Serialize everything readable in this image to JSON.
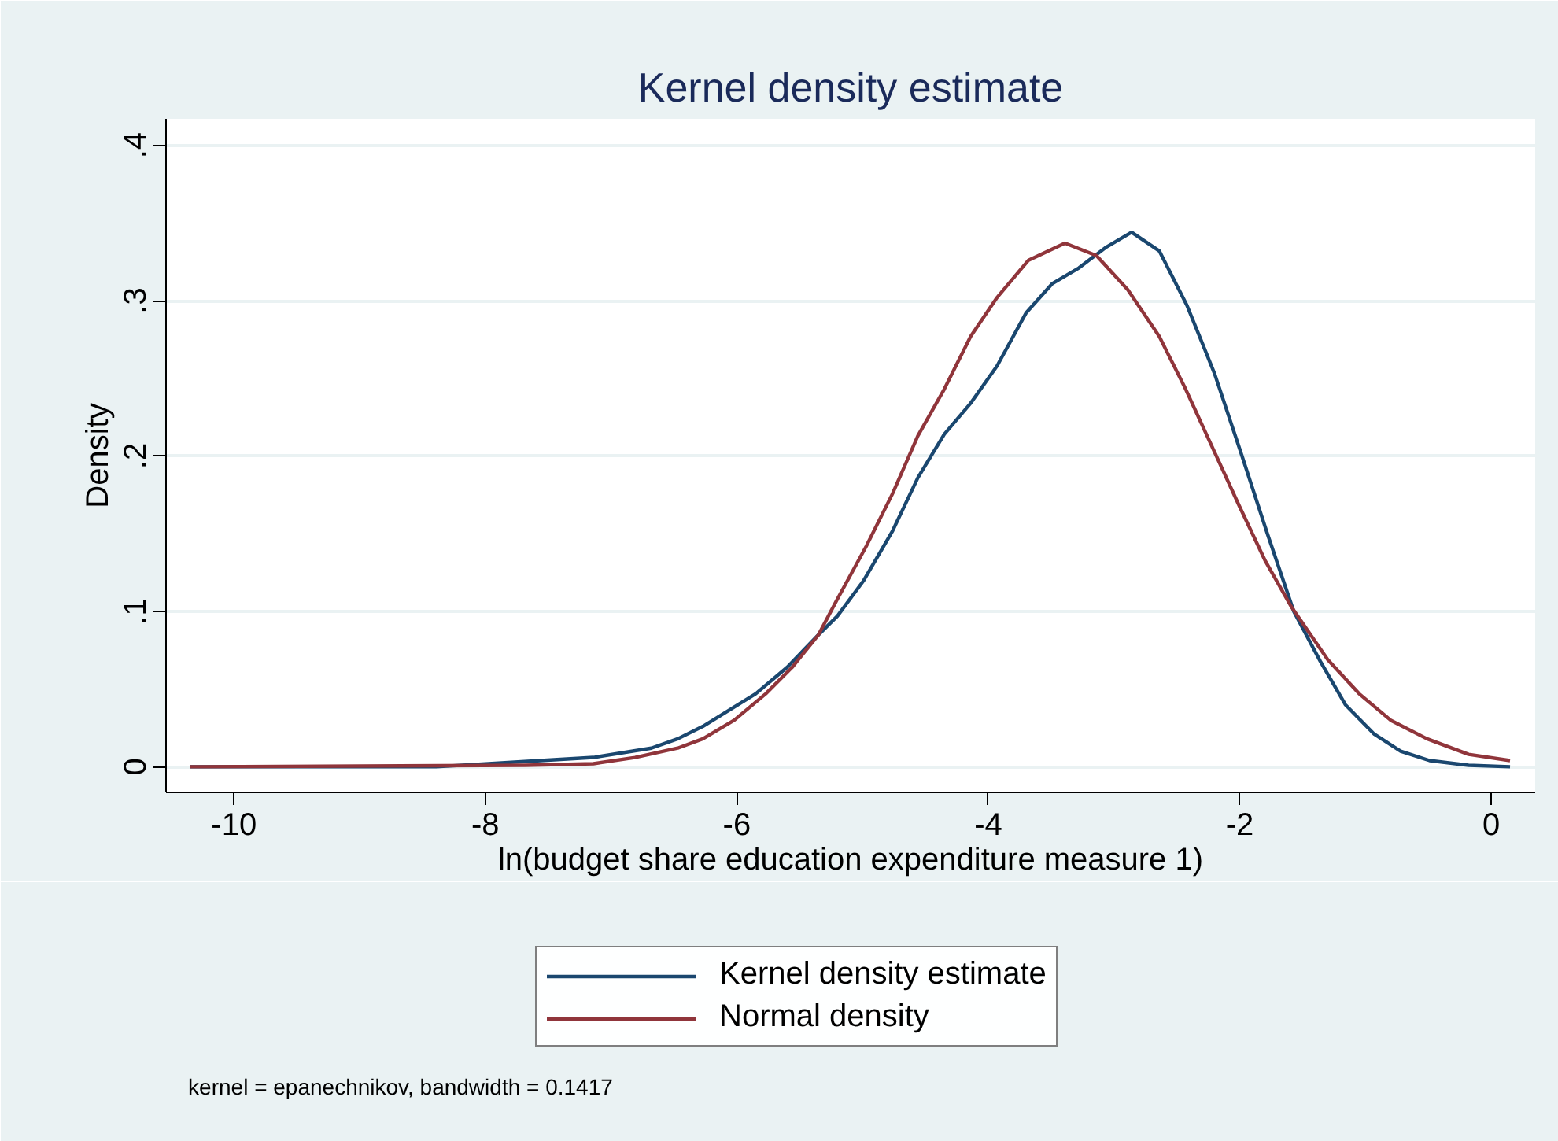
{
  "chart_data": {
    "type": "line",
    "title": "Kernel density estimate",
    "xlabel": "ln(budget share education expenditure measure 1)",
    "ylabel": "Density",
    "xlim": [
      -10.54,
      0.35
    ],
    "ylim": [
      -0.0165,
      0.417
    ],
    "xticks": [
      -10,
      -8,
      -6,
      -4,
      -2,
      0
    ],
    "yticks": [
      0,
      {
        "value": 0.1,
        "label": ".1"
      },
      {
        "value": 0.2,
        "label": ".2"
      },
      {
        "value": 0.3,
        "label": ".3"
      },
      {
        "value": 0.4,
        "label": ".4"
      }
    ],
    "grid": "y",
    "legend": "bottom",
    "annotations": [
      "kernel = epanechnikov, bandwidth = 0.1417"
    ],
    "series": [
      {
        "name": "Kernel density estimate",
        "color": "#1a476f",
        "x": [
          -10.35,
          -8.39,
          -7.56,
          -7.14,
          -6.68,
          -6.47,
          -6.27,
          -5.85,
          -5.6,
          -5.35,
          -5.2,
          -4.99,
          -4.76,
          -4.56,
          -4.35,
          -4.14,
          -3.93,
          -3.7,
          -3.49,
          -3.28,
          -3.07,
          -2.86,
          -2.64,
          -2.42,
          -2.2,
          -1.99,
          -1.78,
          -1.57,
          -1.36,
          -1.16,
          -0.93,
          -0.72,
          -0.49,
          -0.18,
          0.15
        ],
        "values": [
          0.0,
          0.0,
          0.004,
          0.006,
          0.012,
          0.018,
          0.026,
          0.047,
          0.064,
          0.085,
          0.097,
          0.12,
          0.152,
          0.186,
          0.214,
          0.234,
          0.258,
          0.292,
          0.311,
          0.321,
          0.334,
          0.344,
          0.332,
          0.297,
          0.253,
          0.202,
          0.15,
          0.1,
          0.068,
          0.04,
          0.021,
          0.01,
          0.004,
          0.001,
          0.0
        ]
      },
      {
        "name": "Normal density",
        "color": "#90353b",
        "x": [
          -10.35,
          -7.68,
          -7.14,
          -6.81,
          -6.47,
          -6.27,
          -6.02,
          -5.77,
          -5.56,
          -5.35,
          -5.2,
          -4.97,
          -4.76,
          -4.56,
          -4.35,
          -4.14,
          -3.93,
          -3.68,
          -3.39,
          -3.14,
          -2.89,
          -2.64,
          -2.43,
          -2.22,
          -2.01,
          -1.8,
          -1.59,
          -1.3,
          -1.05,
          -0.8,
          -0.51,
          -0.18,
          0.15
        ],
        "values": [
          0.0,
          0.001,
          0.002,
          0.006,
          0.012,
          0.018,
          0.03,
          0.047,
          0.064,
          0.085,
          0.108,
          0.142,
          0.176,
          0.213,
          0.243,
          0.277,
          0.302,
          0.326,
          0.337,
          0.329,
          0.307,
          0.277,
          0.243,
          0.206,
          0.169,
          0.133,
          0.103,
          0.069,
          0.047,
          0.03,
          0.018,
          0.008,
          0.004
        ]
      }
    ]
  }
}
